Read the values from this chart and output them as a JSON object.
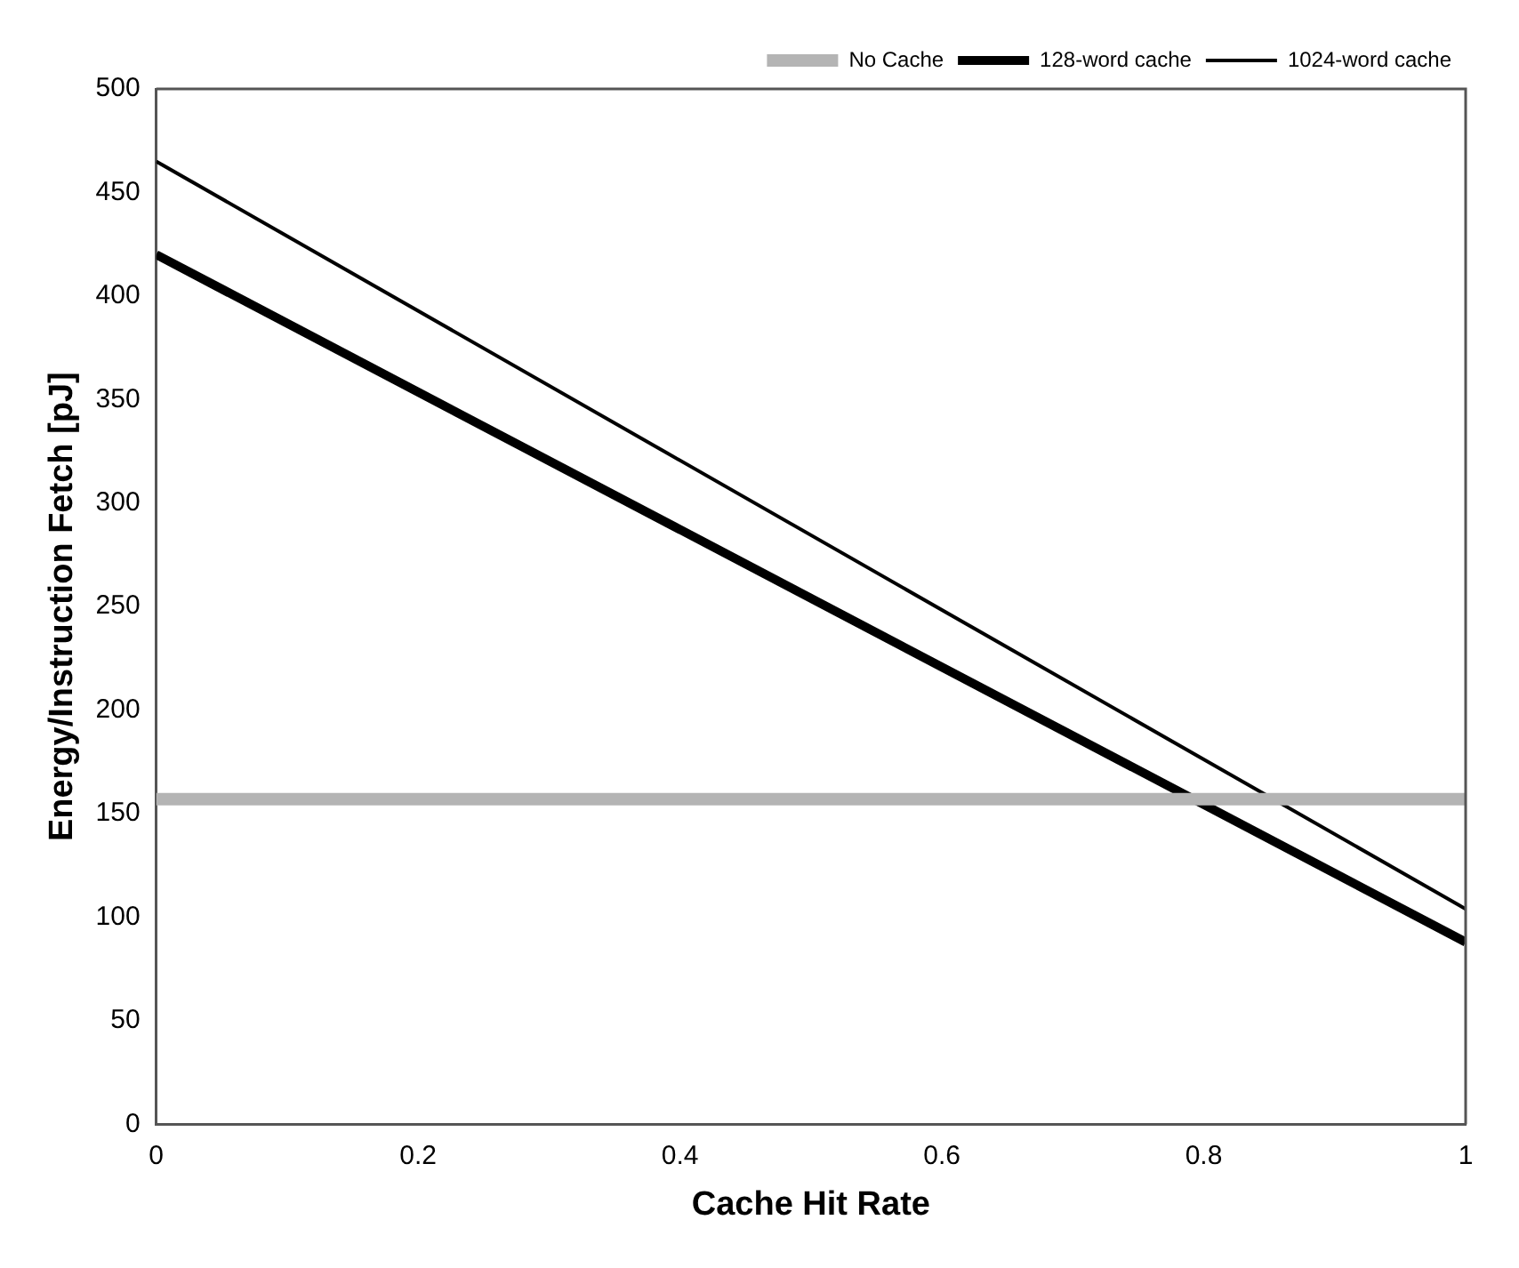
{
  "chart_data": {
    "type": "line",
    "xlabel": "Cache Hit Rate",
    "ylabel": "Energy/Instruction Fetch [pJ]",
    "x": [
      0,
      1
    ],
    "series": [
      {
        "name": "No Cache",
        "color": "#b4b4b4",
        "values": [
          157,
          157
        ]
      },
      {
        "name": "128-word cache",
        "color": "#000000",
        "values": [
          420,
          88
        ]
      },
      {
        "name": "1024-word cache",
        "color": "#000000",
        "values": [
          465,
          104
        ]
      }
    ],
    "xlim": [
      0,
      1
    ],
    "xticks": [
      0,
      0.2,
      0.4,
      0.6,
      0.8,
      1
    ],
    "ylim": [
      0,
      500
    ],
    "yticks": [
      0,
      50,
      100,
      150,
      200,
      250,
      300,
      350,
      400,
      450,
      500
    ],
    "grid": false,
    "legend": "top right",
    "marker": "none",
    "line_style": "solid"
  }
}
